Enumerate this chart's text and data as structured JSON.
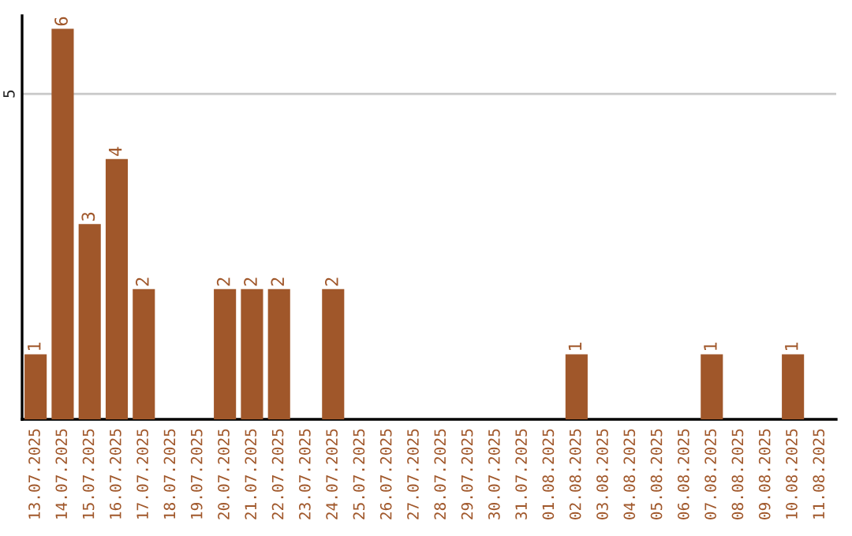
{
  "chart_data": {
    "type": "bar",
    "categories": [
      "13.07.2025",
      "14.07.2025",
      "15.07.2025",
      "16.07.2025",
      "17.07.2025",
      "18.07.2025",
      "19.07.2025",
      "20.07.2025",
      "21.07.2025",
      "22.07.2025",
      "23.07.2025",
      "24.07.2025",
      "25.07.2025",
      "26.07.2025",
      "27.07.2025",
      "28.07.2025",
      "29.07.2025",
      "30.07.2025",
      "31.07.2025",
      "01.08.2025",
      "02.08.2025",
      "03.08.2025",
      "04.08.2025",
      "05.08.2025",
      "06.08.2025",
      "07.08.2025",
      "08.08.2025",
      "09.08.2025",
      "10.08.2025",
      "11.08.2025"
    ],
    "values": [
      1,
      6,
      3,
      4,
      2,
      0,
      0,
      2,
      2,
      2,
      0,
      2,
      0,
      0,
      0,
      0,
      0,
      0,
      0,
      0,
      1,
      0,
      0,
      0,
      0,
      1,
      0,
      0,
      1,
      0
    ],
    "value_labels": [
      "1",
      "6",
      "3",
      "4",
      "2",
      null,
      null,
      "2",
      "2",
      "2",
      null,
      "2",
      null,
      null,
      null,
      null,
      null,
      null,
      null,
      null,
      "1",
      null,
      null,
      null,
      null,
      "1",
      null,
      null,
      "1",
      null
    ],
    "color": "#a0572a",
    "ylim": [
      0,
      6.2
    ],
    "yticks": [
      5
    ],
    "grid": "y"
  }
}
